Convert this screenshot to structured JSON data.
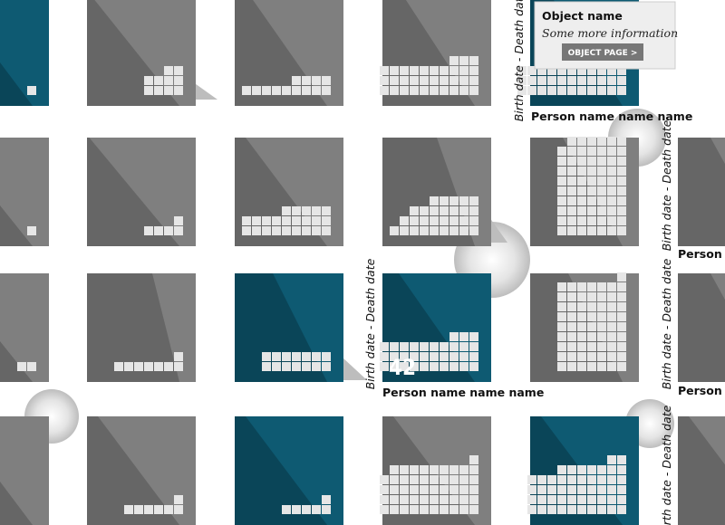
{
  "tooltip": {
    "title": "Object name",
    "subtitle": "Some more information",
    "button": "OBJECT PAGE >"
  },
  "count": "42",
  "labels": [
    {
      "name": "Person name name name",
      "dates": "Birth date - Death date"
    },
    {
      "name": "Person name name name",
      "dates": "Birth date - Death date"
    },
    {
      "name": "Person name name name",
      "dates": "Birth date - Death date"
    },
    {
      "name": "Person name name name",
      "dates": "Birth date - Death date"
    },
    {
      "dates": "Birth date - Death date"
    }
  ]
}
